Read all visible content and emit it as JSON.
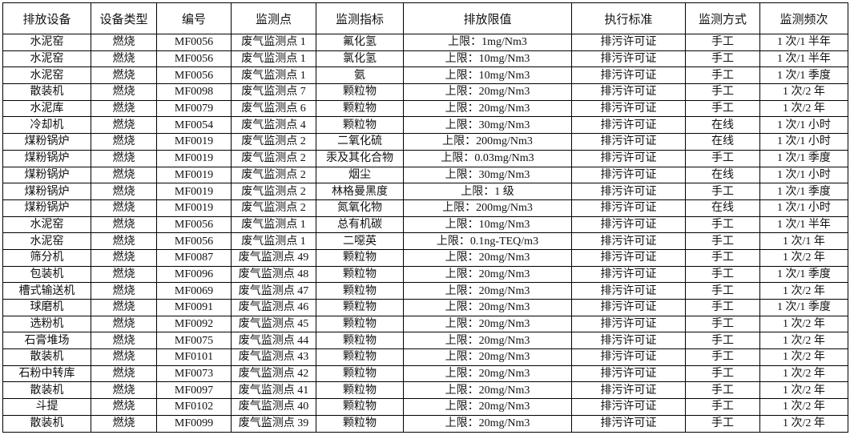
{
  "table": {
    "headers": [
      "排放设备",
      "设备类型",
      "编号",
      "监测点",
      "监测指标",
      "排放限值",
      "执行标准",
      "监测方式",
      "监测频次"
    ],
    "rows": [
      [
        "水泥窑",
        "燃烧",
        "MF0056",
        "废气监测点 1",
        "氟化氢",
        "上限：1mg/Nm3",
        "排污许可证",
        "手工",
        "1 次/1 半年"
      ],
      [
        "水泥窑",
        "燃烧",
        "MF0056",
        "废气监测点 1",
        "氯化氢",
        "上限：10mg/Nm3",
        "排污许可证",
        "手工",
        "1 次/1 半年"
      ],
      [
        "水泥窑",
        "燃烧",
        "MF0056",
        "废气监测点 1",
        "氨",
        "上限：10mg/Nm3",
        "排污许可证",
        "手工",
        "1 次/1 季度"
      ],
      [
        "散装机",
        "燃烧",
        "MF0098",
        "废气监测点 7",
        "颗粒物",
        "上限：20mg/Nm3",
        "排污许可证",
        "手工",
        "1 次/2 年"
      ],
      [
        "水泥库",
        "燃烧",
        "MF0079",
        "废气监测点 6",
        "颗粒物",
        "上限：20mg/Nm3",
        "排污许可证",
        "手工",
        "1 次/2 年"
      ],
      [
        "冷却机",
        "燃烧",
        "MF0054",
        "废气监测点 4",
        "颗粒物",
        "上限：30mg/Nm3",
        "排污许可证",
        "在线",
        "1 次/1 小时"
      ],
      [
        "煤粉锅炉",
        "燃烧",
        "MF0019",
        "废气监测点 2",
        "二氧化硫",
        "上限：200mg/Nm3",
        "排污许可证",
        "在线",
        "1 次/1 小时"
      ],
      [
        "煤粉锅炉",
        "燃烧",
        "MF0019",
        "废气监测点 2",
        "汞及其化合物",
        "上限：0.03mg/Nm3",
        "排污许可证",
        "手工",
        "1 次/1 季度"
      ],
      [
        "煤粉锅炉",
        "燃烧",
        "MF0019",
        "废气监测点 2",
        "烟尘",
        "上限：30mg/Nm3",
        "排污许可证",
        "在线",
        "1 次/1 小时"
      ],
      [
        "煤粉锅炉",
        "燃烧",
        "MF0019",
        "废气监测点 2",
        "林格曼黑度",
        "上限：1 级",
        "排污许可证",
        "手工",
        "1 次/1 季度"
      ],
      [
        "煤粉锅炉",
        "燃烧",
        "MF0019",
        "废气监测点 2",
        "氮氧化物",
        "上限：200mg/Nm3",
        "排污许可证",
        "在线",
        "1 次/1 小时"
      ],
      [
        "水泥窑",
        "燃烧",
        "MF0056",
        "废气监测点 1",
        "总有机碳",
        "上限：10mg/Nm3",
        "排污许可证",
        "手工",
        "1 次/1 半年"
      ],
      [
        "水泥窑",
        "燃烧",
        "MF0056",
        "废气监测点 1",
        "二噁英",
        "上限：0.1ng-TEQ/m3",
        "排污许可证",
        "手工",
        "1 次/1 年"
      ],
      [
        "筛分机",
        "燃烧",
        "MF0087",
        "废气监测点 49",
        "颗粒物",
        "上限：20mg/Nm3",
        "排污许可证",
        "手工",
        "1 次/2 年"
      ],
      [
        "包装机",
        "燃烧",
        "MF0096",
        "废气监测点 48",
        "颗粒物",
        "上限：20mg/Nm3",
        "排污许可证",
        "手工",
        "1 次/1 季度"
      ],
      [
        "槽式输送机",
        "燃烧",
        "MF0069",
        "废气监测点 47",
        "颗粒物",
        "上限：20mg/Nm3",
        "排污许可证",
        "手工",
        "1 次/2 年"
      ],
      [
        "球磨机",
        "燃烧",
        "MF0091",
        "废气监测点 46",
        "颗粒物",
        "上限：20mg/Nm3",
        "排污许可证",
        "手工",
        "1 次/1 季度"
      ],
      [
        "选粉机",
        "燃烧",
        "MF0092",
        "废气监测点 45",
        "颗粒物",
        "上限：20mg/Nm3",
        "排污许可证",
        "手工",
        "1 次/2 年"
      ],
      [
        "石膏堆场",
        "燃烧",
        "MF0075",
        "废气监测点 44",
        "颗粒物",
        "上限：20mg/Nm3",
        "排污许可证",
        "手工",
        "1 次/2 年"
      ],
      [
        "散装机",
        "燃烧",
        "MF0101",
        "废气监测点 43",
        "颗粒物",
        "上限：20mg/Nm3",
        "排污许可证",
        "手工",
        "1 次/2 年"
      ],
      [
        "石粉中转库",
        "燃烧",
        "MF0073",
        "废气监测点 42",
        "颗粒物",
        "上限：20mg/Nm3",
        "排污许可证",
        "手工",
        "1 次/2 年"
      ],
      [
        "散装机",
        "燃烧",
        "MF0097",
        "废气监测点 41",
        "颗粒物",
        "上限：20mg/Nm3",
        "排污许可证",
        "手工",
        "1 次/2 年"
      ],
      [
        "斗提",
        "燃烧",
        "MF0102",
        "废气监测点 40",
        "颗粒物",
        "上限：20mg/Nm3",
        "排污许可证",
        "手工",
        "1 次/2 年"
      ],
      [
        "散装机",
        "燃烧",
        "MF0099",
        "废气监测点 39",
        "颗粒物",
        "上限：20mg/Nm3",
        "排污许可证",
        "手工",
        "1 次/2 年"
      ]
    ]
  }
}
